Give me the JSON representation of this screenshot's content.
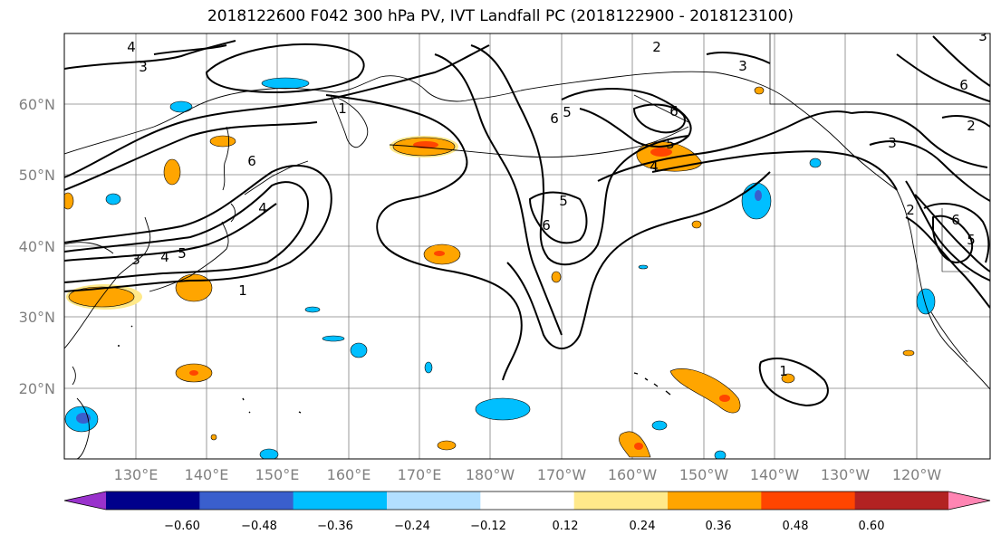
{
  "title": "2018122600 F042 300 hPa PV, IVT Landfall PC (2018122900 - 2018123100)",
  "lat_labels": [
    "60°N",
    "50°N",
    "40°N",
    "30°N",
    "20°N"
  ],
  "lon_labels": [
    "130°E",
    "140°E",
    "150°E",
    "160°E",
    "170°E",
    "180°W",
    "170°W",
    "160°W",
    "150°W",
    "140°W",
    "130°W",
    "120°W"
  ],
  "colorbar": {
    "colors": [
      "#9932CC",
      "#00008B",
      "#3A5FCD",
      "#00BFFF",
      "#B2DFFF",
      "#FFFFFF",
      "#FFE98A",
      "#FFA500",
      "#FF4500",
      "#B22222",
      "#FF85B3"
    ],
    "tick_labels": [
      "−0.60",
      "−0.48",
      "−0.36",
      "−0.24",
      "−0.12",
      "0.12",
      "0.24",
      "0.36",
      "0.48",
      "0.60"
    ]
  },
  "contour_labels": [
    "4",
    "3",
    "1",
    "6",
    "4",
    "3",
    "4",
    "5",
    "1",
    "6",
    "5",
    "6",
    "5",
    "6",
    "5",
    "4",
    "2",
    "3",
    "3",
    "2",
    "6",
    "2",
    "6",
    "5",
    "3",
    "1"
  ],
  "colors": {
    "contour": "#000000",
    "grid": "#808080",
    "coast": "#000000"
  }
}
